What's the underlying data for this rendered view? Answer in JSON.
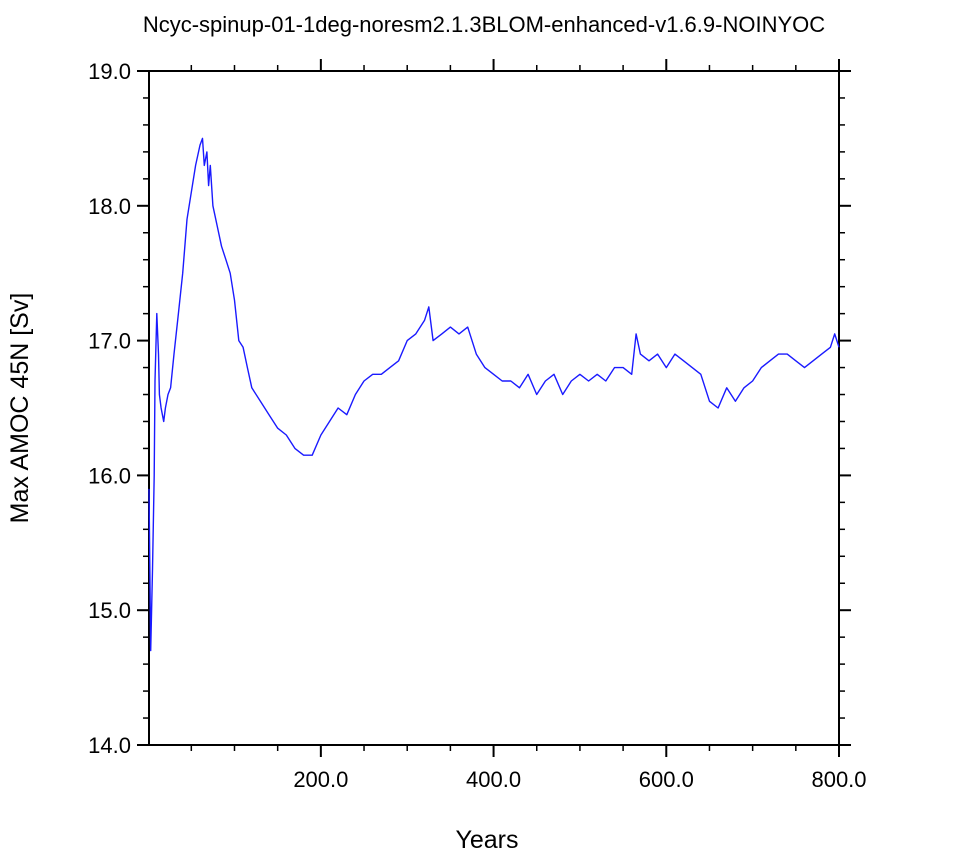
{
  "chart_data": {
    "type": "line",
    "title": "Ncyc-spinup-01-1deg-noresm2.1.3BLOM-enhanced-v1.6.9-NOINYOC",
    "xlabel": "Years",
    "ylabel": "Max AMOC 45N [Sv]",
    "xlim": [
      1,
      800
    ],
    "ylim": [
      14.0,
      19.0
    ],
    "x_ticks": [
      200,
      400,
      600,
      800
    ],
    "x_tick_labels": [
      "200.0",
      "400.0",
      "600.0",
      "800.0"
    ],
    "y_ticks": [
      14,
      15,
      16,
      17,
      18,
      19
    ],
    "y_tick_labels": [
      "14.0",
      "15.0",
      "16.0",
      "17.0",
      "18.0",
      "19.0"
    ],
    "grid": false,
    "legend": "none",
    "line_color": "#1a1aff",
    "series": [
      {
        "x": [
          1,
          3,
          5,
          7,
          8,
          10,
          12,
          13,
          15,
          18,
          20,
          23,
          26,
          30,
          35,
          40,
          45,
          50,
          55,
          60,
          63,
          65,
          68,
          70,
          72,
          75,
          80,
          85,
          90,
          95,
          100,
          105,
          110,
          115,
          120,
          130,
          140,
          150,
          160,
          170,
          180,
          190,
          200,
          210,
          220,
          230,
          240,
          250,
          260,
          270,
          280,
          290,
          300,
          310,
          320,
          325,
          330,
          340,
          350,
          360,
          370,
          380,
          390,
          400,
          410,
          420,
          430,
          440,
          450,
          460,
          470,
          480,
          490,
          500,
          510,
          520,
          530,
          540,
          550,
          560,
          565,
          570,
          580,
          590,
          600,
          610,
          620,
          630,
          640,
          650,
          660,
          670,
          680,
          690,
          700,
          710,
          720,
          730,
          740,
          750,
          760,
          770,
          780,
          790,
          795,
          800
        ],
        "y": [
          15.9,
          14.7,
          15.3,
          16.0,
          16.7,
          17.2,
          16.9,
          16.6,
          16.5,
          16.4,
          16.5,
          16.6,
          16.65,
          16.9,
          17.2,
          17.5,
          17.9,
          18.1,
          18.3,
          18.45,
          18.5,
          18.3,
          18.4,
          18.15,
          18.3,
          18.0,
          17.85,
          17.7,
          17.6,
          17.5,
          17.3,
          17.0,
          16.95,
          16.8,
          16.65,
          16.55,
          16.45,
          16.35,
          16.3,
          16.2,
          16.15,
          16.15,
          16.3,
          16.4,
          16.5,
          16.45,
          16.6,
          16.7,
          16.75,
          16.75,
          16.8,
          16.85,
          17.0,
          17.05,
          17.15,
          17.25,
          17.0,
          17.05,
          17.1,
          17.05,
          17.1,
          16.9,
          16.8,
          16.75,
          16.7,
          16.7,
          16.65,
          16.75,
          16.6,
          16.7,
          16.75,
          16.6,
          16.7,
          16.75,
          16.7,
          16.75,
          16.7,
          16.8,
          16.8,
          16.75,
          17.05,
          16.9,
          16.85,
          16.9,
          16.8,
          16.9,
          16.85,
          16.8,
          16.75,
          16.55,
          16.5,
          16.65,
          16.55,
          16.65,
          16.7,
          16.8,
          16.85,
          16.9,
          16.9,
          16.85,
          16.8,
          16.85,
          16.9,
          16.95,
          17.05,
          16.95
        ]
      }
    ]
  }
}
